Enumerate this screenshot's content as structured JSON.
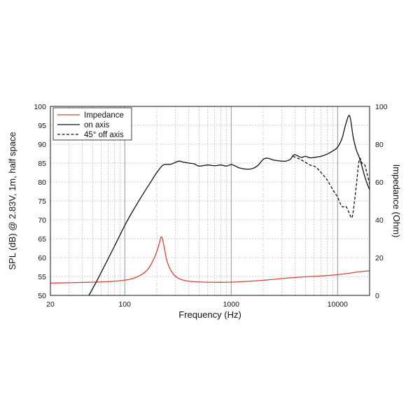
{
  "chart_data": {
    "type": "line",
    "xlabel": "Frequency (Hz)",
    "ylabel": "SPL (dB) @ 2.83V, 1m, half space",
    "y2label": "Impedance (Ohm)",
    "xscale": "log",
    "xlim": [
      20,
      20000
    ],
    "ylim": [
      50,
      100
    ],
    "y2lim": [
      0,
      100
    ],
    "x_tick_labels": [
      "20",
      "100",
      "1000",
      "10000"
    ],
    "x_ticks": [
      20,
      100,
      1000,
      10000
    ],
    "y_ticks": [
      50,
      55,
      60,
      65,
      70,
      75,
      80,
      85,
      90,
      95,
      100
    ],
    "y2_ticks": [
      0,
      20,
      40,
      60,
      80,
      100
    ],
    "grid": true,
    "legend_position": "top-left",
    "series": [
      {
        "name": "Impedance",
        "axis": "right",
        "color": "#d0463a",
        "style": "solid",
        "x": [
          20,
          50,
          80,
          120,
          160,
          190,
          210,
          220,
          230,
          250,
          280,
          320,
          400,
          600,
          1000,
          2000,
          4000,
          8000,
          12000,
          16000,
          20000
        ],
        "y": [
          6.5,
          7,
          7.5,
          9,
          13,
          20,
          27,
          31,
          28,
          18,
          12,
          9,
          7.5,
          7,
          7,
          8,
          9.5,
          10.5,
          11.5,
          12.5,
          13
        ]
      },
      {
        "name": "on axis",
        "axis": "left",
        "color": "#111111",
        "style": "solid",
        "x": [
          46,
          55,
          65,
          80,
          100,
          120,
          150,
          180,
          200,
          230,
          270,
          320,
          350,
          400,
          450,
          500,
          600,
          700,
          800,
          900,
          1000,
          1100,
          1200,
          1400,
          1600,
          1800,
          2000,
          2200,
          2500,
          2800,
          3200,
          3600,
          3800,
          4000,
          4300,
          4600,
          5000,
          5500,
          6000,
          7000,
          8000,
          9000,
          10000,
          11000,
          12000,
          13000,
          14000,
          15000,
          16000,
          17000,
          18000,
          19000,
          20000
        ],
        "y": [
          50,
          54,
          58,
          63,
          68.5,
          72.5,
          77,
          80.5,
          82.5,
          84.5,
          84.7,
          85.5,
          85.3,
          85,
          84.8,
          84.2,
          84.5,
          84.3,
          84.5,
          84.2,
          84.6,
          84.2,
          83.7,
          83.4,
          83.6,
          84.5,
          86,
          86.3,
          85.8,
          85.6,
          85.5,
          86,
          87,
          87.2,
          86.8,
          86.5,
          86.8,
          86.4,
          86.5,
          86.8,
          87.4,
          88.2,
          89.2,
          91.5,
          95.5,
          97.5,
          92,
          88.5,
          86.5,
          84,
          81.5,
          79.5,
          78
        ]
      },
      {
        "name": "45° off axis",
        "axis": "left",
        "color": "#111111",
        "style": "dashed",
        "x": [
          3800,
          4300,
          4800,
          5500,
          6200,
          7000,
          8000,
          9000,
          10000,
          11000,
          12000,
          13000,
          13500,
          14000,
          15000,
          16000,
          17000,
          18000,
          19000,
          20000
        ],
        "y": [
          86.8,
          86.2,
          85.5,
          84.5,
          84,
          82.5,
          80.5,
          78,
          76,
          73.5,
          73.5,
          71.5,
          70.5,
          72,
          79,
          86,
          85,
          84.5,
          82,
          79.5
        ]
      }
    ]
  }
}
